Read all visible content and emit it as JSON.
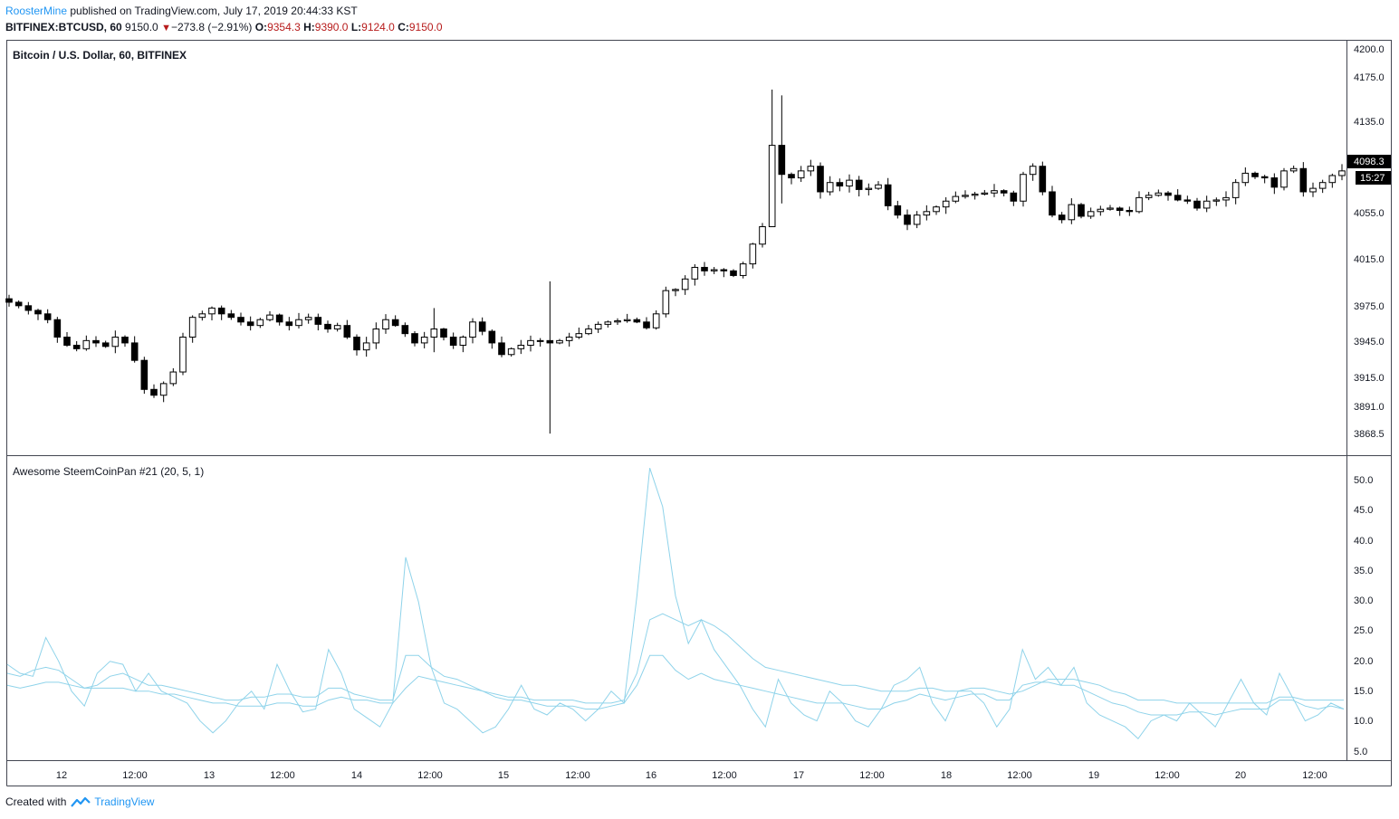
{
  "header": {
    "author": "RoosterMine",
    "published_text": " published on TradingView.com, July 17, 2019 20:44:33 KST",
    "symbol": "BITFINEX:BTCUSD, 60",
    "last": "9150.0",
    "change": "−273.8 (−2.91%)",
    "o_label": "O:",
    "o_value": "9354.3",
    "h_label": "H:",
    "h_value": "9390.0",
    "l_label": "L:",
    "l_value": "9124.0",
    "c_label": "C:",
    "c_value": "9150.0"
  },
  "footer": {
    "created_with": "Created with",
    "brand": "TradingView"
  },
  "colors": {
    "candle_up": "#ffffff",
    "candle_down": "#000000",
    "indicator": "#8fd3ea",
    "author": "#2196f3",
    "change_red": "#b71c1c"
  },
  "chart_data": [
    {
      "type": "candlestick",
      "title": "Bitcoin / U.S. Dollar, 60, BITFINEX",
      "y_ticks": [
        "4200.0",
        "4175.0",
        "4135.0",
        "4055.0",
        "4015.0",
        "3975.0",
        "3945.0",
        "3915.0",
        "3891.0",
        "3868.5"
      ],
      "last_price_label": "4098.3",
      "countdown_label": "15:27",
      "x_ticks": [
        "12",
        "12:00",
        "13",
        "12:00",
        "14",
        "12:00",
        "15",
        "12:00",
        "16",
        "12:00",
        "17",
        "12:00",
        "18",
        "12:00",
        "19",
        "12:00",
        "20",
        "12:00"
      ],
      "close_path": [
        3985,
        3982,
        3978,
        3975,
        3970,
        3955,
        3948,
        3945,
        3952,
        3950,
        3947,
        3955,
        3950,
        3935,
        3910,
        3905,
        3915,
        3925,
        3955,
        3972,
        3975,
        3980,
        3975,
        3972,
        3968,
        3965,
        3970,
        3974,
        3968,
        3965,
        3970,
        3972,
        3966,
        3962,
        3965,
        3955,
        3944,
        3950,
        3962,
        3970,
        3965,
        3958,
        3950,
        3955,
        3962,
        3955,
        3948,
        3955,
        3968,
        3960,
        3950,
        3940,
        3945,
        3948,
        3952,
        3952,
        3950,
        3952,
        3955,
        3958,
        3962,
        3966,
        3968,
        3969,
        3970,
        3968,
        3963,
        3975,
        3995,
        3996,
        4005,
        4015,
        4012,
        4013,
        4012,
        4008,
        4018,
        4035,
        4050,
        4120,
        4095,
        4092,
        4098,
        4102,
        4080,
        4088,
        4085,
        4090,
        4082,
        4083,
        4086,
        4068,
        4060,
        4052,
        4060,
        4063,
        4067,
        4072,
        4076,
        4077,
        4078,
        4079,
        4081,
        4079,
        4072,
        4095,
        4102,
        4080,
        4060,
        4056,
        4069,
        4059,
        4063,
        4065,
        4066,
        4064,
        4063,
        4075,
        4077,
        4079,
        4077,
        4073,
        4072,
        4066,
        4072,
        4073,
        4075,
        4088,
        4096,
        4093,
        4092,
        4084,
        4098,
        4100,
        4080,
        4083,
        4088,
        4094,
        4098
      ]
    },
    {
      "type": "line",
      "title": "Awesome SteemCoinPan #21 (20, 5, 1)",
      "y_ticks": [
        "50.0",
        "45.0",
        "40.0",
        "35.0",
        "30.0",
        "25.0",
        "20.0",
        "15.0",
        "10.0",
        "5.0"
      ],
      "ylim": [
        2.4,
        53.5
      ],
      "series": [
        {
          "values": [
            18.5,
            17,
            16.5,
            23,
            19,
            14,
            11.5,
            17,
            19,
            18.5,
            14,
            17,
            14,
            13,
            12,
            9,
            7,
            9,
            12,
            14,
            11,
            18.5,
            14,
            10.5,
            11,
            21,
            17,
            11,
            9.5,
            8,
            12,
            36.5,
            29,
            18,
            12,
            11,
            9,
            7,
            8,
            11,
            15,
            11,
            10,
            12,
            11,
            9,
            11,
            14,
            12,
            30,
            51.5,
            45,
            30,
            22,
            26,
            21,
            18,
            15,
            11,
            8,
            16,
            12,
            10,
            9,
            14,
            12,
            9,
            8,
            11,
            15,
            16,
            18,
            12,
            9,
            14,
            14,
            12,
            8,
            11,
            21,
            16,
            18,
            15,
            18,
            12,
            10,
            9,
            8,
            6,
            9,
            10,
            9,
            12,
            10,
            8,
            12,
            16,
            12,
            10,
            17,
            13,
            9,
            10,
            12,
            11
          ]
        },
        {
          "values": [
            17,
            16.5,
            17.5,
            18,
            17.5,
            16,
            14.5,
            15,
            16.5,
            17,
            16,
            15,
            15,
            14.5,
            14,
            13.5,
            13,
            12.5,
            12.5,
            13,
            13,
            13.5,
            13.5,
            13,
            13,
            14.5,
            14.5,
            13.5,
            13,
            12.5,
            12.5,
            20,
            20,
            18,
            16.5,
            16,
            15,
            14,
            13,
            12.5,
            12.5,
            12,
            11.5,
            11.5,
            11.5,
            11,
            11,
            11.5,
            12,
            15,
            20,
            20,
            17.5,
            16,
            17,
            16,
            15.5,
            15,
            14.5,
            14,
            13.5,
            13,
            12.5,
            12,
            12,
            12,
            11.5,
            11,
            11,
            12,
            12.5,
            13.5,
            13,
            12.5,
            13,
            13.5,
            13.5,
            12.5,
            12.5,
            15,
            15.5,
            15.5,
            15,
            15,
            14,
            13,
            12,
            11.5,
            10.5,
            10,
            10,
            10,
            10.5,
            10.5,
            10,
            10.5,
            11,
            11,
            11,
            12.5,
            12.5,
            11.5,
            11,
            11.5,
            11
          ]
        },
        {
          "values": [
            15,
            14.5,
            15,
            15.5,
            15.5,
            15,
            14.5,
            14.5,
            14.5,
            14.5,
            14,
            14,
            13.5,
            13.5,
            13,
            12.5,
            12,
            12,
            11.5,
            11.5,
            11.5,
            12,
            12,
            11.5,
            11.5,
            12.5,
            13,
            12.5,
            12.5,
            12,
            12,
            14.5,
            16.5,
            16,
            15.5,
            15,
            14.5,
            14,
            13.5,
            13,
            13,
            12.5,
            12.5,
            12.5,
            12.5,
            12,
            12,
            12,
            12.5,
            17,
            26,
            27,
            26,
            25,
            26,
            25,
            23.5,
            21.5,
            19.5,
            18,
            17.5,
            17,
            16.5,
            16,
            15.5,
            15,
            15,
            14.5,
            14,
            14,
            14,
            14.5,
            14.5,
            14,
            14,
            14.5,
            14.5,
            14,
            13.5,
            14,
            15,
            16,
            16,
            16,
            15.5,
            15,
            14,
            13.5,
            12.5,
            12.5,
            12.5,
            12,
            12,
            12,
            12,
            12,
            12,
            12,
            12,
            13,
            13,
            12.5,
            12.5,
            12.5,
            12.5
          ]
        }
      ]
    }
  ]
}
